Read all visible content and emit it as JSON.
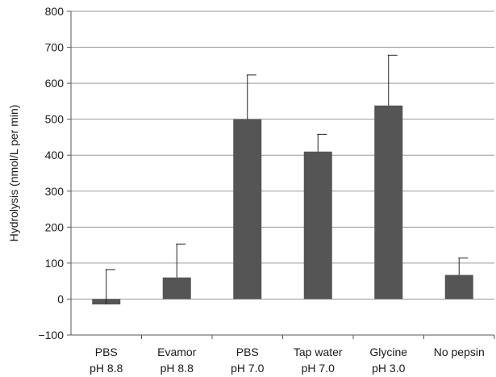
{
  "chart_data": {
    "type": "bar",
    "title": "",
    "xlabel": "",
    "ylabel": "Hydrolysis (nmol/L per min)",
    "ylim": [
      -100,
      800
    ],
    "yticks": [
      -100,
      0,
      100,
      200,
      300,
      400,
      500,
      600,
      700,
      800
    ],
    "ytick_labels": [
      "−100",
      "0",
      "100",
      "200",
      "300",
      "400",
      "500",
      "600",
      "700",
      "800"
    ],
    "grid": true,
    "legend": "none",
    "bar_color": "#555555",
    "categories": [
      {
        "line1": "PBS",
        "line2": "pH 8.8"
      },
      {
        "line1": "Evamor",
        "line2": "pH 8.8"
      },
      {
        "line1": "PBS",
        "line2": "pH 7.0"
      },
      {
        "line1": "Tap water",
        "line2": "pH 7.0"
      },
      {
        "line1": "Glycine",
        "line2": "pH 3.0"
      },
      {
        "line1": "No pepsin",
        "line2": ""
      }
    ],
    "values": [
      -15,
      60,
      500,
      410,
      538,
      67
    ],
    "error_upper": [
      97,
      93,
      123,
      48,
      140,
      47
    ]
  }
}
